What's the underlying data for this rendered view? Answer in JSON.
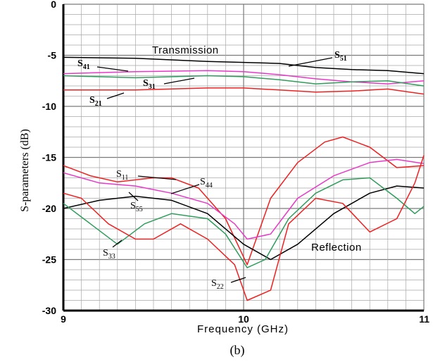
{
  "chart_data": {
    "type": "line",
    "title": "",
    "caption": "(b)",
    "xlabel": "Frequency  (GHz)",
    "ylabel": "S-parameters  (dB)",
    "xlim": [
      9,
      11
    ],
    "ylim": [
      -30,
      0
    ],
    "xticks": [
      "9",
      "10",
      "11"
    ],
    "yticks": [
      "0",
      "-5",
      "-10",
      "-15",
      "-20",
      "-25",
      "-30"
    ],
    "grid": true,
    "annotations": [
      "Transmission",
      "Reflection"
    ],
    "colors": {
      "black": "#000000",
      "magenta": "#e838c8",
      "green": "#2e9d5b",
      "red": "#f02020",
      "grid": "#a8a8a8"
    },
    "series": [
      {
        "name": "S51",
        "color": "#000000",
        "x": [
          9,
          9.4,
          9.8,
          10,
          10.2,
          10.4,
          10.6,
          10.8,
          11
        ],
        "y": [
          -5.2,
          -5.3,
          -5.6,
          -5.7,
          -5.8,
          -6.2,
          -6.4,
          -6.5,
          -6.8
        ]
      },
      {
        "name": "S41",
        "color": "#e838c8",
        "x": [
          9,
          9.4,
          9.8,
          10,
          10.2,
          10.4,
          10.6,
          10.8,
          11
        ],
        "y": [
          -6.8,
          -6.6,
          -6.5,
          -6.6,
          -6.9,
          -7.3,
          -7.6,
          -7.8,
          -7.5
        ]
      },
      {
        "name": "S31",
        "color": "#2e9d5b",
        "x": [
          9,
          9.4,
          9.8,
          10,
          10.2,
          10.4,
          10.6,
          10.8,
          11
        ],
        "y": [
          -7.0,
          -7.2,
          -7.0,
          -7.1,
          -7.4,
          -7.8,
          -7.6,
          -7.5,
          -8.0
        ]
      },
      {
        "name": "S21",
        "color": "#f02020",
        "x": [
          9,
          9.4,
          9.8,
          10,
          10.2,
          10.4,
          10.6,
          10.8,
          11
        ],
        "y": [
          -8.4,
          -8.4,
          -8.2,
          -8.2,
          -8.4,
          -8.6,
          -8.5,
          -8.3,
          -8.8
        ]
      },
      {
        "name": "S11",
        "color": "#f02020",
        "x": [
          9,
          9.15,
          9.3,
          9.5,
          9.6,
          9.75,
          9.9,
          10.02,
          10.15,
          10.3,
          10.45,
          10.55,
          10.7,
          10.85,
          11
        ],
        "y": [
          -15.8,
          -16.8,
          -17.4,
          -17.0,
          -17.0,
          -18.0,
          -21.0,
          -25.5,
          -19.0,
          -15.5,
          -13.5,
          -13.0,
          -14.0,
          -16.0,
          -15.8
        ]
      },
      {
        "name": "S44",
        "color": "#e838c8",
        "x": [
          9,
          9.2,
          9.4,
          9.6,
          9.8,
          9.95,
          10.02,
          10.15,
          10.3,
          10.5,
          10.7,
          10.85,
          11
        ],
        "y": [
          -16.5,
          -17.5,
          -17.8,
          -18.5,
          -19.5,
          -21.5,
          -23.0,
          -22.5,
          -19.0,
          -16.8,
          -15.5,
          -15.2,
          -15.6
        ]
      },
      {
        "name": "S55",
        "color": "#000000",
        "x": [
          9,
          9.2,
          9.4,
          9.6,
          9.8,
          10.0,
          10.15,
          10.3,
          10.5,
          10.7,
          10.85,
          11
        ],
        "y": [
          -20.0,
          -19.2,
          -18.8,
          -19.2,
          -20.5,
          -23.5,
          -25.0,
          -23.5,
          -20.5,
          -18.5,
          -17.8,
          -18.0
        ]
      },
      {
        "name": "S33",
        "color": "#2e9d5b",
        "x": [
          9,
          9.15,
          9.3,
          9.45,
          9.6,
          9.8,
          9.9,
          10.02,
          10.12,
          10.25,
          10.4,
          10.55,
          10.7,
          10.85,
          10.95,
          11
        ],
        "y": [
          -19.5,
          -21.5,
          -23.5,
          -21.5,
          -20.5,
          -21.0,
          -22.5,
          -25.8,
          -25.0,
          -21.0,
          -18.5,
          -17.2,
          -17.0,
          -19.0,
          -20.5,
          -19.8
        ]
      },
      {
        "name": "S22",
        "color": "#f02020",
        "x": [
          9,
          9.1,
          9.25,
          9.4,
          9.5,
          9.65,
          9.8,
          9.95,
          10.02,
          10.15,
          10.25,
          10.4,
          10.55,
          10.7,
          10.85,
          10.95,
          11
        ],
        "y": [
          -18.5,
          -19.0,
          -21.5,
          -23.0,
          -23.0,
          -21.5,
          -23.0,
          -25.5,
          -29.0,
          -28.0,
          -21.5,
          -19.0,
          -19.5,
          -22.3,
          -21.0,
          -17.5,
          -14.8
        ]
      }
    ],
    "labels": {
      "transmission": "Transmission",
      "reflection": "Reflection",
      "S51": {
        "base": "S",
        "sub": "51"
      },
      "S41": {
        "base": "S",
        "sub": "41"
      },
      "S31": {
        "base": "S",
        "sub": "31"
      },
      "S21": {
        "base": "S",
        "sub": "21"
      },
      "S11": {
        "base": "S",
        "sub": "11"
      },
      "S44": {
        "base": "S",
        "sub": "44"
      },
      "S55": {
        "base": "S",
        "sub": "55"
      },
      "S33": {
        "base": "S",
        "sub": "33"
      },
      "S22": {
        "base": "S",
        "sub": "22"
      }
    }
  }
}
